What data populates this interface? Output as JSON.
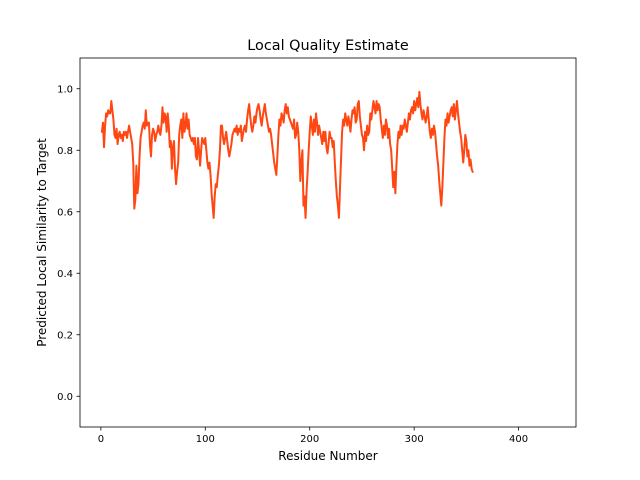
{
  "chart_data": {
    "type": "line",
    "title": "Local Quality Estimate",
    "xlabel": "Residue Number",
    "ylabel": "Predicted Local Similarity to Target",
    "xlim": [
      -20,
      455
    ],
    "ylim": [
      -0.1,
      1.1
    ],
    "xticks": [
      0,
      100,
      200,
      300,
      400
    ],
    "yticks": [
      0.0,
      0.2,
      0.4,
      0.6,
      0.8,
      1.0
    ],
    "grid": false,
    "legend": "none",
    "line_color": "#ff4713",
    "series": [
      {
        "x_start": 1,
        "x_step": 1,
        "values": [
          0.86,
          0.89,
          0.81,
          0.88,
          0.92,
          0.91,
          0.93,
          0.92,
          0.92,
          0.96,
          0.93,
          0.9,
          0.85,
          0.84,
          0.87,
          0.82,
          0.85,
          0.86,
          0.84,
          0.85,
          0.83,
          0.86,
          0.85,
          0.86,
          0.84,
          0.86,
          0.88,
          0.86,
          0.84,
          0.82,
          0.76,
          0.61,
          0.64,
          0.75,
          0.66,
          0.69,
          0.78,
          0.84,
          0.86,
          0.88,
          0.89,
          0.87,
          0.93,
          0.88,
          0.89,
          0.89,
          0.82,
          0.78,
          0.85,
          0.87,
          0.86,
          0.83,
          0.85,
          0.86,
          0.88,
          0.86,
          0.85,
          0.88,
          0.94,
          0.89,
          0.92,
          0.91,
          0.86,
          0.92,
          0.88,
          0.81,
          0.83,
          0.74,
          0.81,
          0.83,
          0.74,
          0.69,
          0.73,
          0.76,
          0.85,
          0.88,
          0.9,
          0.84,
          0.92,
          0.86,
          0.88,
          0.92,
          0.87,
          0.9,
          0.85,
          0.84,
          0.83,
          0.84,
          0.82,
          0.84,
          0.78,
          0.77,
          0.84,
          0.8,
          0.75,
          0.8,
          0.84,
          0.83,
          0.82,
          0.84,
          0.8,
          0.76,
          0.74,
          0.76,
          0.72,
          0.66,
          0.62,
          0.58,
          0.65,
          0.69,
          0.68,
          0.72,
          0.75,
          0.8,
          0.88,
          0.88,
          0.84,
          0.82,
          0.84,
          0.86,
          0.83,
          0.8,
          0.78,
          0.8,
          0.82,
          0.85,
          0.86,
          0.87,
          0.86,
          0.88,
          0.85,
          0.87,
          0.86,
          0.88,
          0.83,
          0.85,
          0.87,
          0.88,
          0.86,
          0.9,
          0.93,
          0.95,
          0.91,
          0.88,
          0.86,
          0.88,
          0.91,
          0.89,
          0.92,
          0.94,
          0.95,
          0.93,
          0.9,
          0.88,
          0.91,
          0.93,
          0.95,
          0.92,
          0.9,
          0.88,
          0.86,
          0.87,
          0.85,
          0.82,
          0.79,
          0.76,
          0.74,
          0.72,
          0.78,
          0.85,
          0.9,
          0.88,
          0.92,
          0.91,
          0.89,
          0.93,
          0.95,
          0.92,
          0.94,
          0.91,
          0.9,
          0.89,
          0.88,
          0.87,
          0.9,
          0.84,
          0.85,
          0.89,
          0.86,
          0.8,
          0.7,
          0.76,
          0.8,
          0.62,
          0.65,
          0.58,
          0.67,
          0.73,
          0.8,
          0.86,
          0.91,
          0.88,
          0.85,
          0.9,
          0.86,
          0.92,
          0.89,
          0.85,
          0.88,
          0.86,
          0.84,
          0.82,
          0.86,
          0.83,
          0.86,
          0.81,
          0.79,
          0.82,
          0.86,
          0.84,
          0.84,
          0.81,
          0.83,
          0.76,
          0.7,
          0.65,
          0.62,
          0.58,
          0.68,
          0.77,
          0.86,
          0.9,
          0.88,
          0.92,
          0.9,
          0.88,
          0.91,
          0.89,
          0.86,
          0.9,
          0.93,
          0.92,
          0.94,
          0.89,
          0.9,
          0.95,
          0.96,
          0.91,
          0.88,
          0.85,
          0.84,
          0.8,
          0.86,
          0.83,
          0.88,
          0.85,
          0.86,
          0.92,
          0.9,
          0.93,
          0.96,
          0.94,
          0.92,
          0.96,
          0.93,
          0.95,
          0.94,
          0.9,
          0.87,
          0.84,
          0.88,
          0.85,
          0.9,
          0.88,
          0.84,
          0.87,
          0.82,
          0.8,
          0.74,
          0.68,
          0.73,
          0.66,
          0.75,
          0.82,
          0.86,
          0.84,
          0.88,
          0.85,
          0.88,
          0.87,
          0.9,
          0.88,
          0.86,
          0.89,
          0.92,
          0.9,
          0.93,
          0.94,
          0.92,
          0.96,
          0.93,
          0.95,
          0.97,
          0.94,
          0.99,
          0.95,
          0.92,
          0.9,
          0.93,
          0.91,
          0.89,
          0.91,
          0.94,
          0.9,
          0.86,
          0.84,
          0.87,
          0.85,
          0.88,
          0.86,
          0.82,
          0.78,
          0.75,
          0.7,
          0.66,
          0.62,
          0.68,
          0.76,
          0.84,
          0.9,
          0.88,
          0.92,
          0.89,
          0.91,
          0.93,
          0.94,
          0.91,
          0.95,
          0.9,
          0.93,
          0.96,
          0.92,
          0.89,
          0.86,
          0.84,
          0.8,
          0.76,
          0.8,
          0.85,
          0.83,
          0.78,
          0.8,
          0.75,
          0.77,
          0.74,
          0.73
        ]
      }
    ]
  }
}
